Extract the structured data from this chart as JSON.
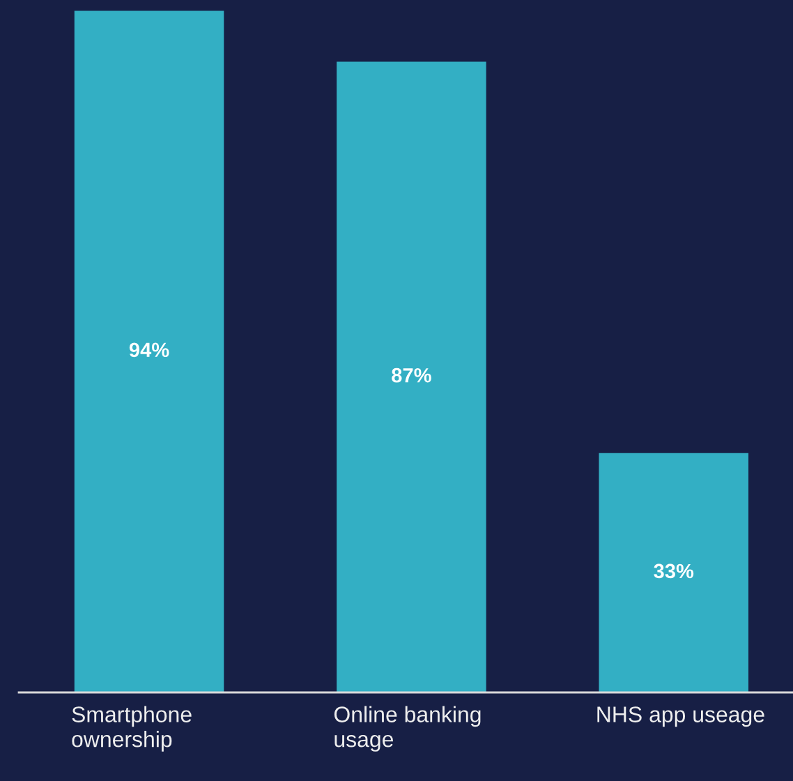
{
  "chart_data": {
    "type": "bar",
    "categories": [
      "Smartphone\nownership",
      "Online banking\nusage",
      "NHS app useage"
    ],
    "values": [
      94,
      87,
      33
    ],
    "value_labels": [
      "94%",
      "87%",
      "33%"
    ],
    "color": "#33afc4",
    "ylim": [
      0,
      95.5
    ],
    "relative": false,
    "grid": false,
    "legend": false
  }
}
